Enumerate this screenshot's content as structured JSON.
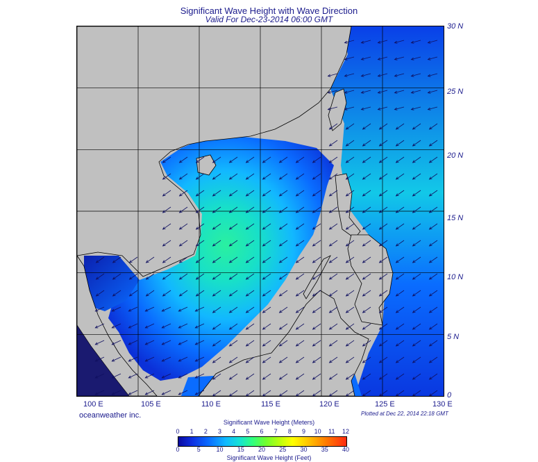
{
  "title": "Significant Wave Height with Wave Direction",
  "subtitle": "Valid For Dec-23-2014 06:00 GMT",
  "credit": "oceanweather inc.",
  "plotted": "Plotted at Dec 22, 2014 22:18 GMT",
  "map": {
    "lon_range": [
      100,
      130
    ],
    "lat_range": [
      0,
      30
    ],
    "grid_step_deg": 5,
    "lat_labels": [
      "30 N",
      "25 N",
      "20 N",
      "15 N",
      "10 N",
      "5 N",
      "0"
    ],
    "lon_labels": [
      "100 E",
      "105 E",
      "110 E",
      "115 E",
      "120 E",
      "125 E",
      "130 E"
    ],
    "land_color": "#c0c0c0",
    "prevailing_wave_direction": "from northeast"
  },
  "colorbar": {
    "meters_title": "Significant Wave Height (Meters)",
    "feet_title": "Significant Wave Height (Feet)",
    "meters_ticks": [
      "0",
      "1",
      "2",
      "3",
      "4",
      "5",
      "6",
      "7",
      "8",
      "9",
      "10",
      "11",
      "12"
    ],
    "feet_ticks": [
      "0",
      "5",
      "10",
      "15",
      "20",
      "25",
      "30",
      "35",
      "40"
    ]
  }
}
